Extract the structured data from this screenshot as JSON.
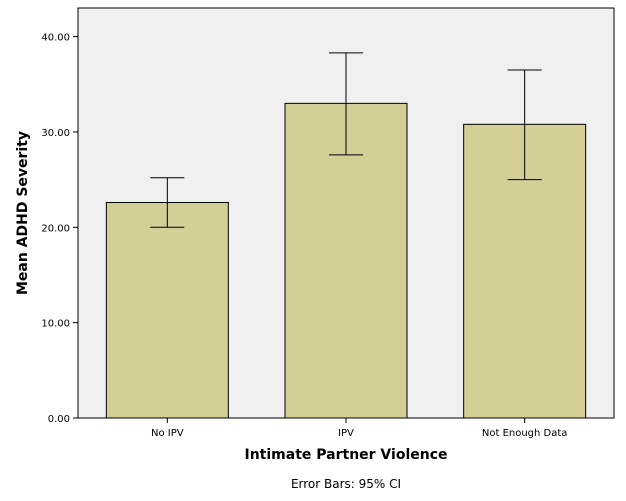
{
  "chart_data": {
    "type": "bar",
    "categories": [
      "No IPV",
      "IPV",
      "Not Enough Data"
    ],
    "values": [
      22.6,
      33.0,
      30.8
    ],
    "error_bars": {
      "lower": [
        20.0,
        27.6,
        25.0
      ],
      "upper": [
        25.2,
        38.3,
        36.5
      ]
    },
    "xlabel": "Intimate Partner Violence",
    "ylabel": "Mean ADHD Severity",
    "ylim": [
      0,
      43.0
    ],
    "yticks": [
      0,
      10,
      20,
      30,
      40
    ],
    "ytick_labels": [
      "0.00",
      "10.00",
      "20.00",
      "30.00",
      "40.00"
    ],
    "grid": false,
    "footnote": "Error Bars: 95% CI",
    "colors": {
      "plot_background": "#f0f0f0",
      "bar_fill": "#d3cf97",
      "bar_stroke": "#000000",
      "error_bar": "#000000"
    }
  }
}
